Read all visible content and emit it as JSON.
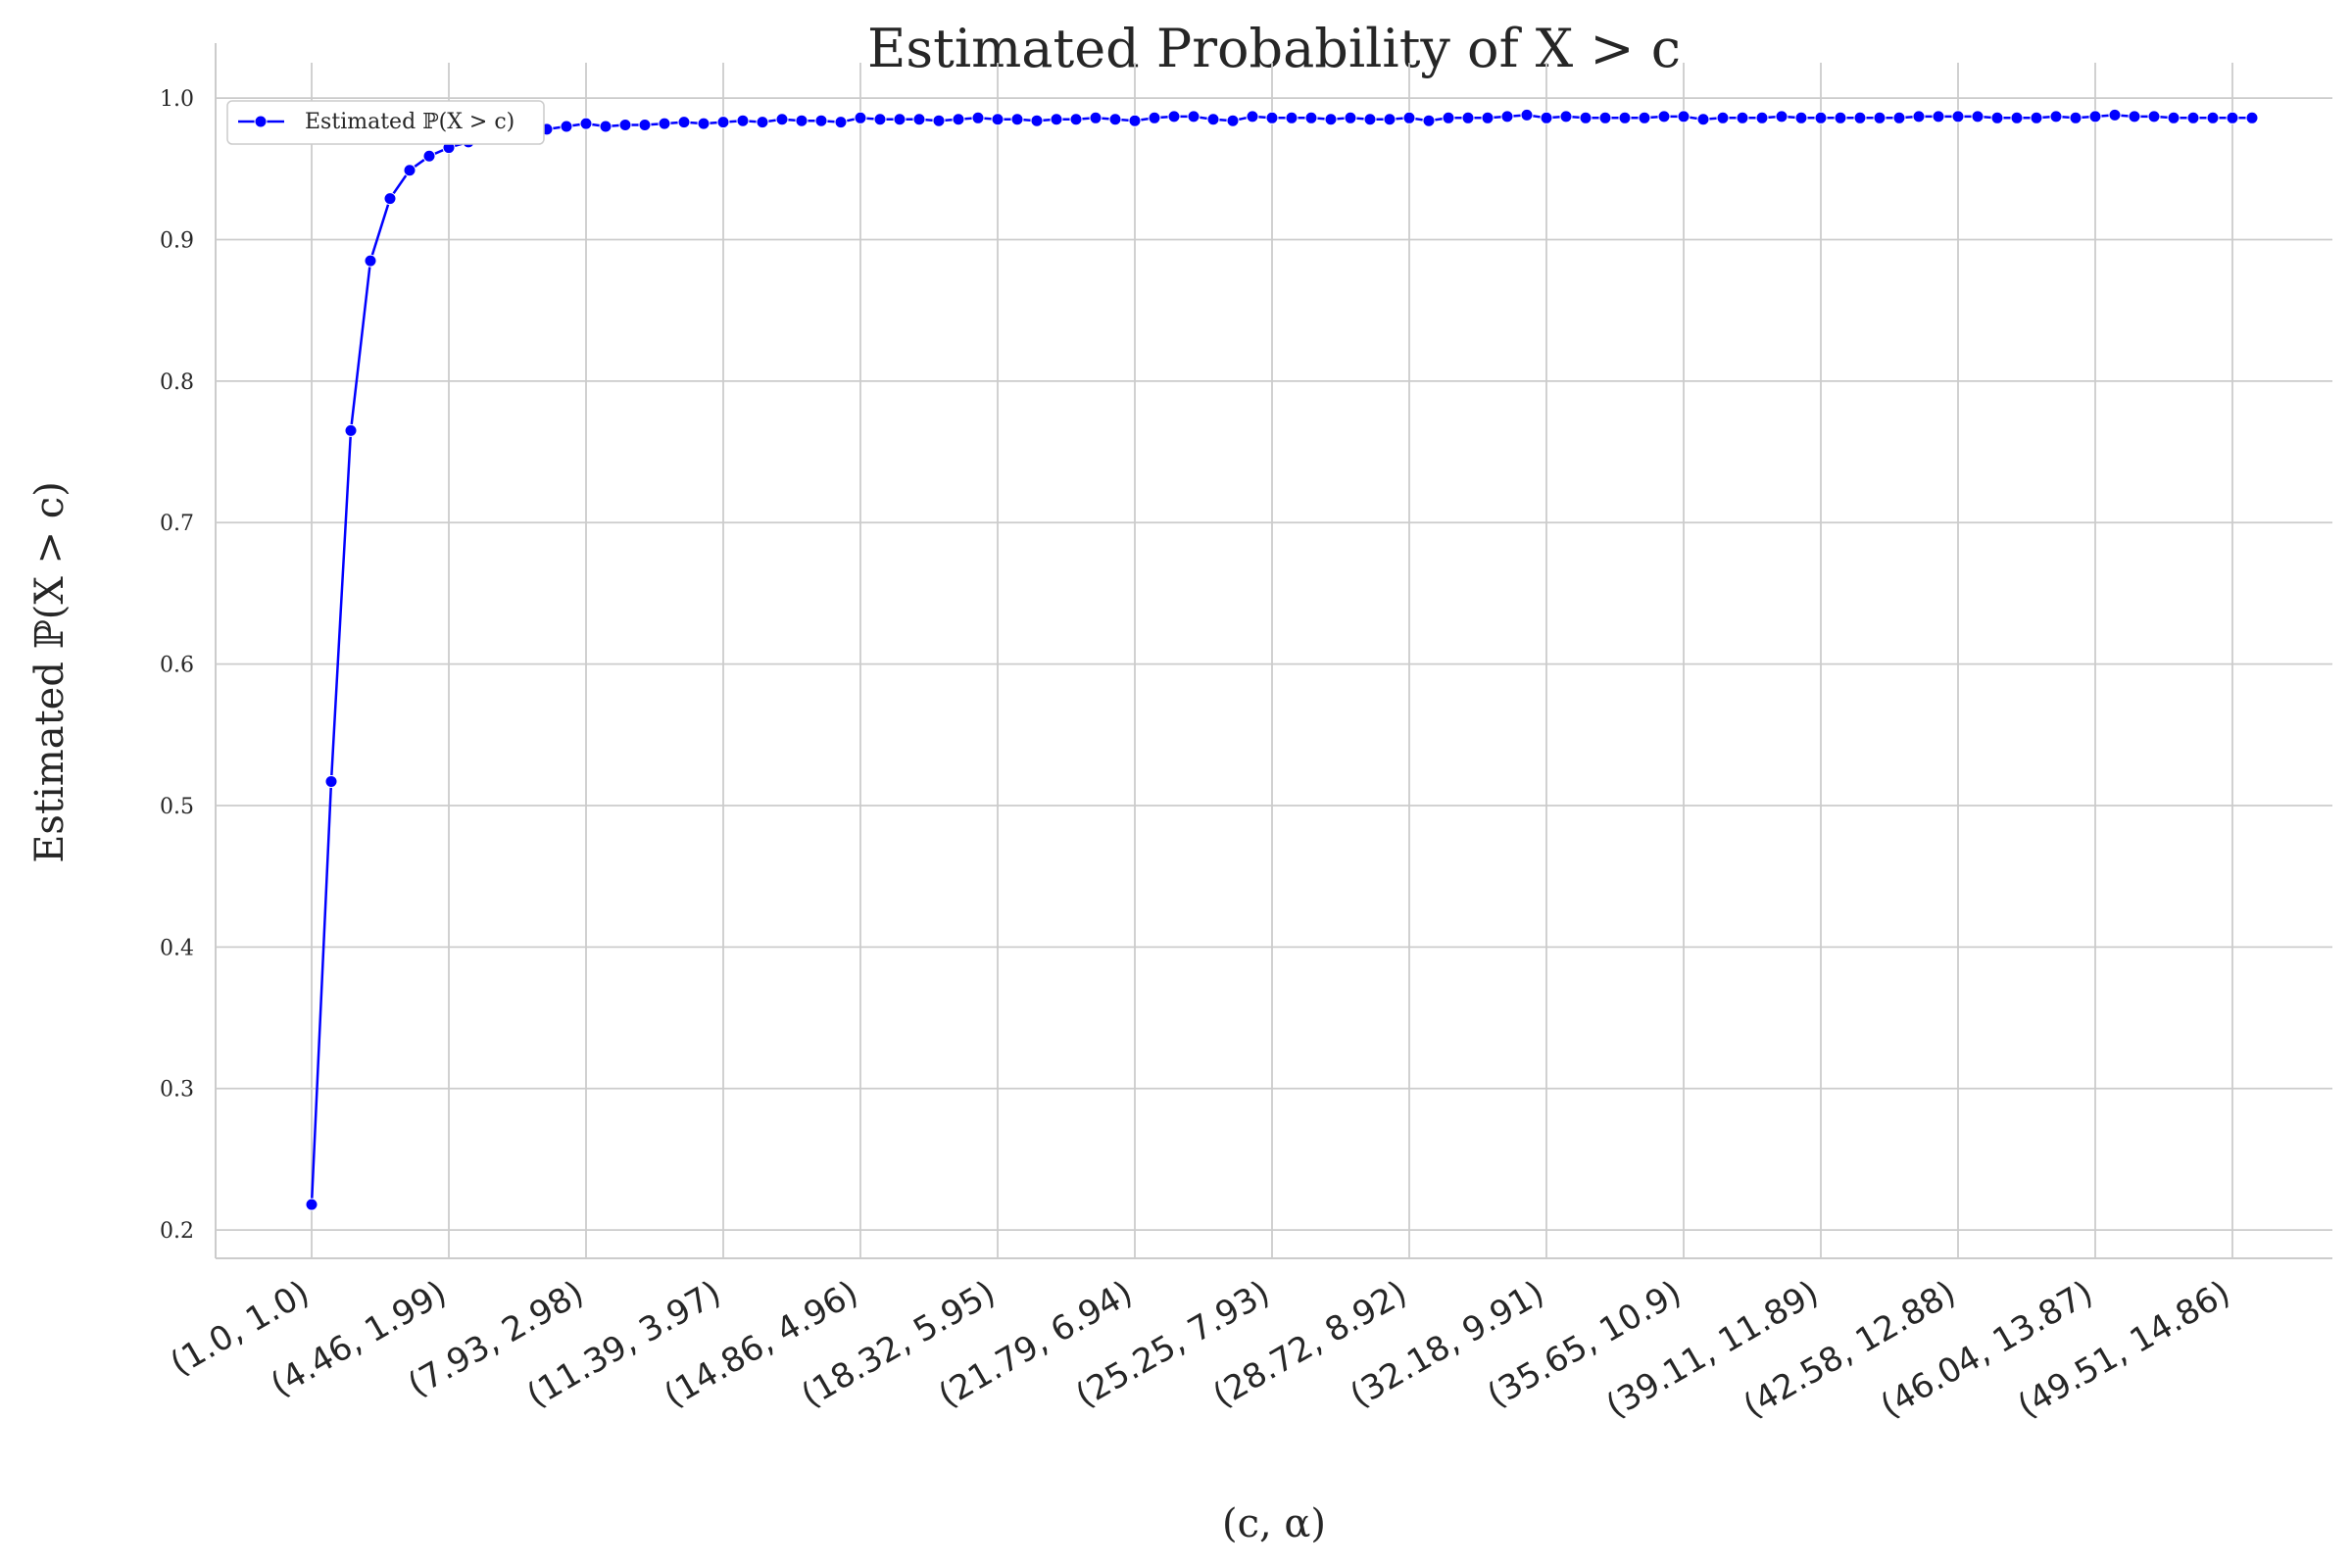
{
  "chart_data": {
    "type": "line",
    "title": "Estimated Probability of X > c",
    "xlabel": "(c, α)",
    "ylabel": "Estimated ℙ(X > c)",
    "legend": {
      "label": "Estimated ℙ(X > c)",
      "position": "top-left"
    },
    "grid": true,
    "ylim": [
      0.18,
      1.025
    ],
    "yticks": [
      0.2,
      0.3,
      0.4,
      0.5,
      0.6,
      0.7,
      0.8,
      0.9,
      1.0
    ],
    "xtick_labels": [
      "(1.0, 1.0)",
      "(4.46, 1.99)",
      "(7.93, 2.98)",
      "(11.39, 3.97)",
      "(14.86, 4.96)",
      "(18.32, 5.95)",
      "(21.79, 6.94)",
      "(25.25, 7.93)",
      "(28.72, 8.92)",
      "(32.18, 9.91)",
      "(35.65, 10.9)",
      "(39.11, 11.89)",
      "(42.58, 12.88)",
      "(46.04, 13.87)",
      "(49.51, 14.86)"
    ],
    "series": [
      {
        "name": "Estimated ℙ(X > c)",
        "color": "#0000ff",
        "values": [
          0.218,
          0.517,
          0.765,
          0.885,
          0.929,
          0.949,
          0.959,
          0.965,
          0.969,
          0.972,
          0.974,
          0.976,
          0.978,
          0.98,
          0.982,
          0.98,
          0.981,
          0.981,
          0.982,
          0.983,
          0.982,
          0.983,
          0.984,
          0.983,
          0.985,
          0.984,
          0.984,
          0.983,
          0.986,
          0.985,
          0.985,
          0.985,
          0.984,
          0.985,
          0.986,
          0.985,
          0.985,
          0.984,
          0.985,
          0.985,
          0.986,
          0.985,
          0.984,
          0.986,
          0.987,
          0.987,
          0.985,
          0.984,
          0.987,
          0.986,
          0.986,
          0.986,
          0.985,
          0.986,
          0.985,
          0.985,
          0.986,
          0.984,
          0.986,
          0.986,
          0.986,
          0.987,
          0.988,
          0.986,
          0.987,
          0.986,
          0.986,
          0.986,
          0.986,
          0.987,
          0.987,
          0.985,
          0.986,
          0.986,
          0.986,
          0.987,
          0.986,
          0.986,
          0.986,
          0.986,
          0.986,
          0.986,
          0.987,
          0.987,
          0.987,
          0.987,
          0.986,
          0.986,
          0.986,
          0.987,
          0.986,
          0.987,
          0.988,
          0.987,
          0.987,
          0.986,
          0.986,
          0.986,
          0.986,
          0.986
        ]
      }
    ]
  }
}
